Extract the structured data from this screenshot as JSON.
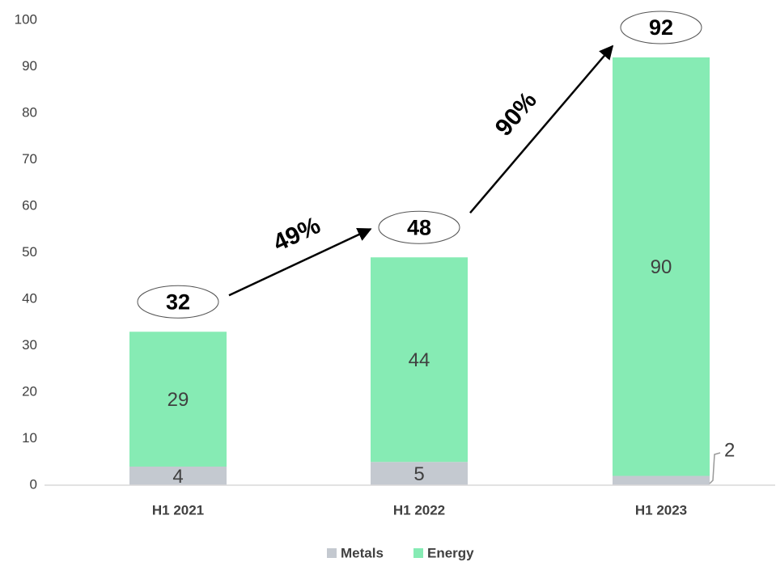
{
  "chart_data": {
    "type": "stacked_bar",
    "categories": [
      "H1 2021",
      "H1 2022",
      "H1 2023"
    ],
    "series": [
      {
        "name": "Metals",
        "color": "#c4c9d0",
        "values": [
          4,
          5,
          2
        ]
      },
      {
        "name": "Energy",
        "color": "#86ebb4",
        "values": [
          29,
          44,
          90
        ]
      }
    ],
    "totals": [
      32,
      48,
      92
    ],
    "growth": [
      {
        "value": 49,
        "label": "49%"
      },
      {
        "value": 90,
        "label": "90%"
      }
    ],
    "ylim": [
      0,
      100
    ],
    "yticks": [
      0,
      10,
      20,
      30,
      40,
      50,
      60,
      70,
      80,
      90,
      100
    ],
    "grid": false,
    "legend": "bottom"
  }
}
